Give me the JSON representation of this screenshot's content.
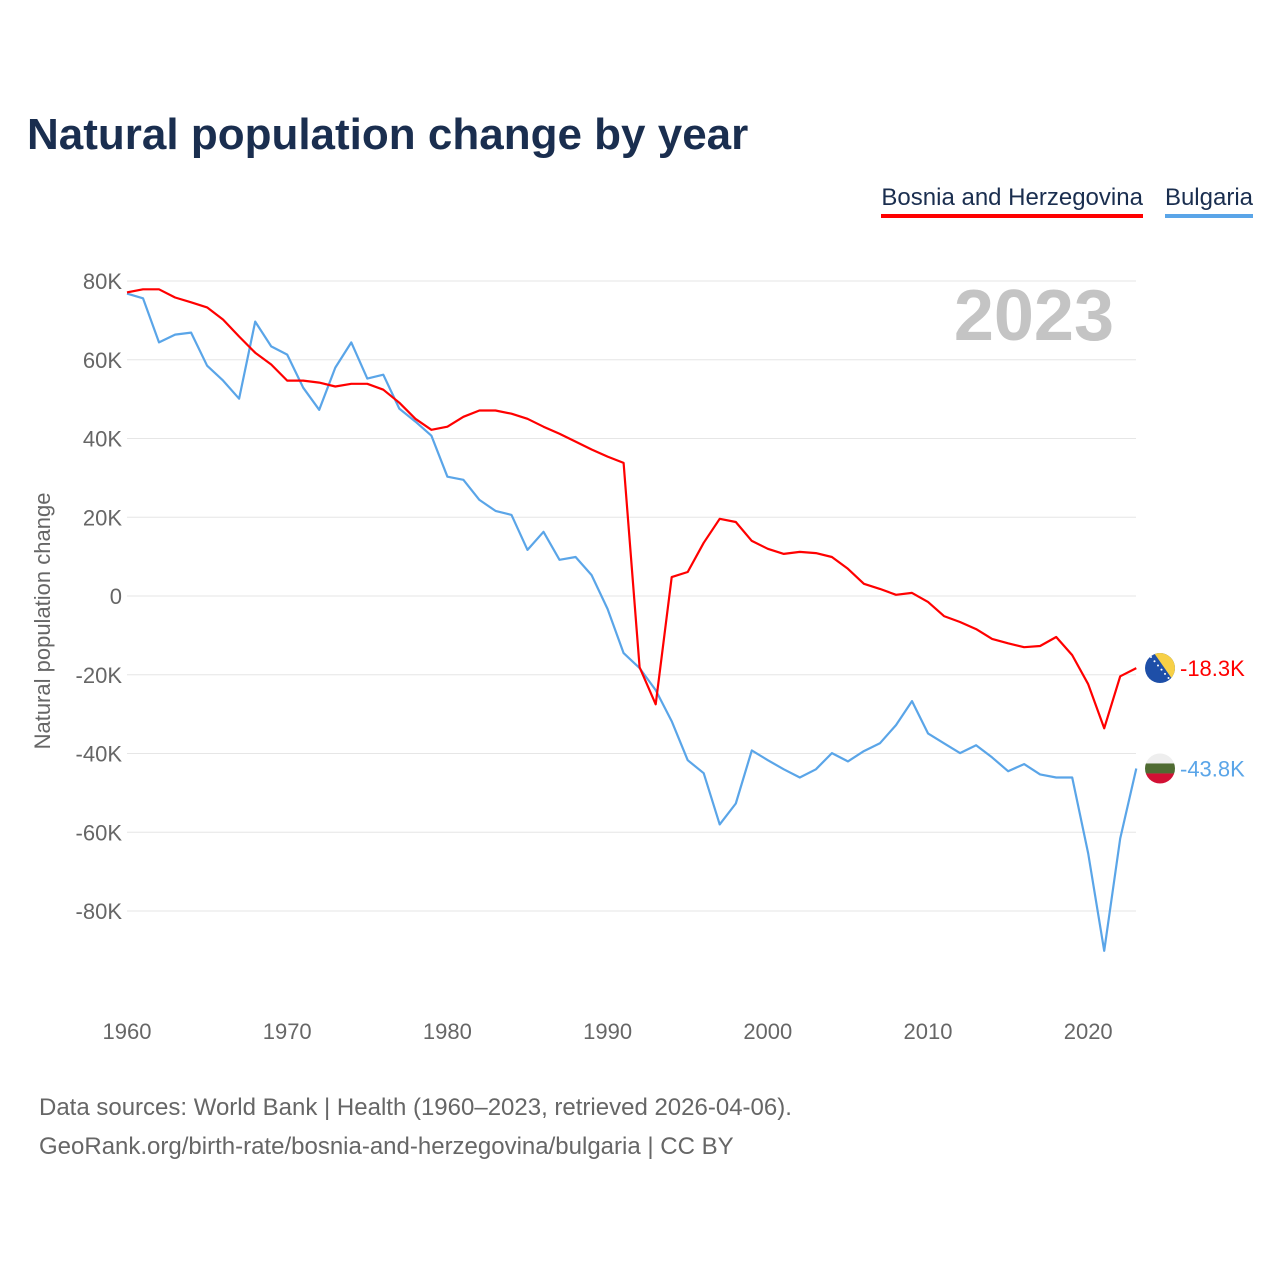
{
  "title": "Natural population change by year",
  "legend": [
    {
      "label": "Bosnia and Herzegovina",
      "color": "#ff0000"
    },
    {
      "label": "Bulgaria",
      "color": "#5aa5e8"
    }
  ],
  "source": {
    "line1": "Data sources: World Bank | Health (1960–2023, retrieved 2026-04-06).",
    "line2": "GeoRank.org/birth-rate/bosnia-and-herzegovina/bulgaria | CC BY"
  },
  "chart_data": {
    "type": "line",
    "title": "Natural population change by year",
    "ylabel": "Natural population change",
    "xlabel": "",
    "year_label": "2023",
    "xlim": [
      1960,
      2023
    ],
    "ylim": [
      -100000,
      80000
    ],
    "x_ticks": [
      1960,
      1970,
      1980,
      1990,
      2000,
      2010,
      2020
    ],
    "x_tick_labels": [
      "1960",
      "1970",
      "1980",
      "1990",
      "2000",
      "2010",
      "2020"
    ],
    "y_ticks": [
      80000,
      60000,
      40000,
      20000,
      0,
      -20000,
      -40000,
      -60000,
      -80000
    ],
    "y_tick_labels": [
      "80K",
      "60K",
      "40K",
      "20K",
      "0",
      "-20K",
      "-40K",
      "-60K",
      "-80K"
    ],
    "grid": true,
    "legend_position": "top-right",
    "x": [
      1960,
      1961,
      1962,
      1963,
      1964,
      1965,
      1966,
      1967,
      1968,
      1969,
      1970,
      1971,
      1972,
      1973,
      1974,
      1975,
      1976,
      1977,
      1978,
      1979,
      1980,
      1981,
      1982,
      1983,
      1984,
      1985,
      1986,
      1987,
      1988,
      1989,
      1990,
      1991,
      1992,
      1993,
      1994,
      1995,
      1996,
      1997,
      1998,
      1999,
      2000,
      2001,
      2002,
      2003,
      2004,
      2005,
      2006,
      2007,
      2008,
      2009,
      2010,
      2011,
      2012,
      2013,
      2014,
      2015,
      2016,
      2017,
      2018,
      2019,
      2020,
      2021,
      2022,
      2023
    ],
    "series": [
      {
        "name": "Bosnia and Herzegovina",
        "color": "#ff0000",
        "end_label": "-18.3K",
        "flag": "bosnia-flag",
        "values": [
          77100,
          77900,
          77900,
          75800,
          74600,
          73300,
          70200,
          65900,
          61800,
          58800,
          54700,
          54700,
          54200,
          53200,
          53900,
          53900,
          52400,
          49100,
          45000,
          42200,
          43000,
          45500,
          47100,
          47100,
          46300,
          45000,
          43000,
          41200,
          39200,
          37200,
          35400,
          33800,
          -18100,
          -27500,
          4800,
          6100,
          13500,
          19600,
          18800,
          14000,
          12000,
          10700,
          11200,
          10900,
          9900,
          6900,
          3100,
          1800,
          300,
          800,
          -1500,
          -5100,
          -6600,
          -8400,
          -10900,
          -12000,
          -13000,
          -12700,
          -10400,
          -15000,
          -22400,
          -33600,
          -20400,
          -18300
        ]
      },
      {
        "name": "Bulgaria",
        "color": "#5aa5e8",
        "end_label": "-43.8K",
        "flag": "bulgaria-flag",
        "values": [
          76800,
          75600,
          64400,
          66400,
          66900,
          58500,
          54700,
          50100,
          69700,
          63400,
          61300,
          52900,
          47300,
          58000,
          64400,
          55200,
          56200,
          47600,
          44300,
          40700,
          30300,
          29500,
          24400,
          21600,
          20600,
          11700,
          16300,
          9200,
          9900,
          5300,
          -3300,
          -14500,
          -18300,
          -23900,
          -31800,
          -41700,
          -45000,
          -58000,
          -52700,
          -39200,
          -41700,
          -44000,
          -46100,
          -44000,
          -39900,
          -42000,
          -39400,
          -37400,
          -32800,
          -26700,
          -34900,
          -37400,
          -39900,
          -37900,
          -41000,
          -44500,
          -42700,
          -45300,
          -46100,
          -46100,
          -65400,
          -90100,
          -61600,
          -43800
        ]
      }
    ]
  }
}
